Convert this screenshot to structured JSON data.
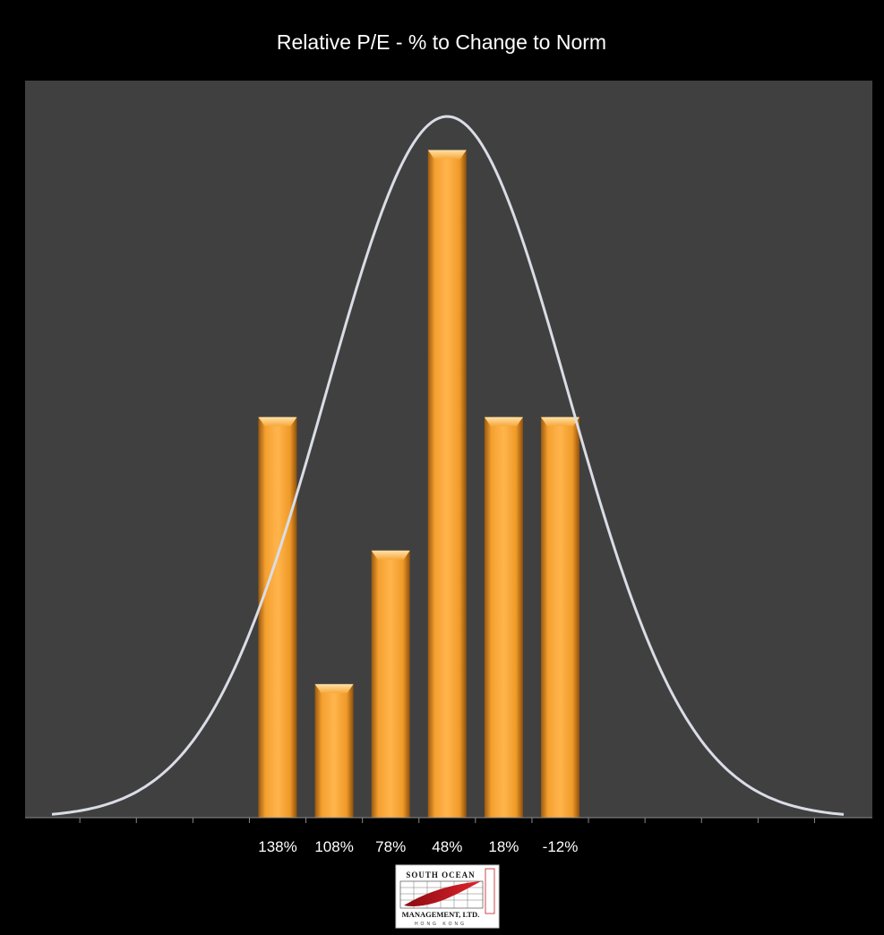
{
  "chart_data": {
    "type": "bar",
    "title": "Relative P/E - % to Change to Norm",
    "categories": [
      "138%",
      "108%",
      "78%",
      "48%",
      "18%",
      "-12%"
    ],
    "values": [
      3,
      1,
      2,
      5,
      3,
      3
    ],
    "ylim": [
      0,
      5.52
    ],
    "grid": false,
    "legend": "none",
    "overlay": {
      "type": "normal-curve",
      "peak_at": "48%"
    }
  },
  "logo": {
    "line1": "SOUTH OCEAN",
    "line2": "MANAGEMENT, LTD.",
    "line3": "HONG KONG"
  },
  "colors": {
    "background": "#000000",
    "plot_area": "#404040",
    "bar": "#F6A234",
    "curve": "#DADDE6",
    "text": "#FFFFFF"
  }
}
